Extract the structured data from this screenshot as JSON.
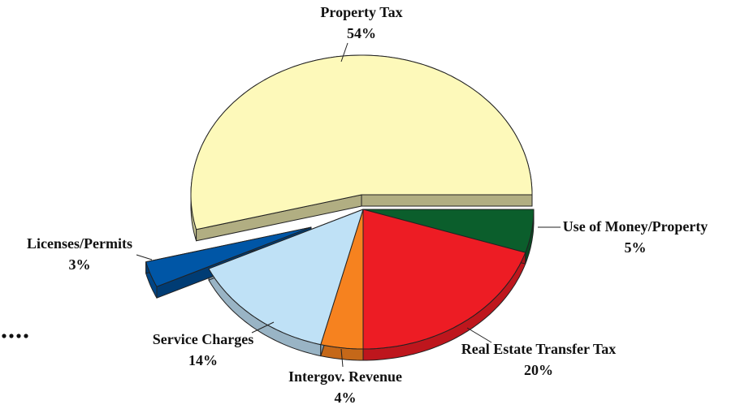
{
  "chart_data": {
    "type": "pie",
    "categories": [
      "Use of Money/Property",
      "Real Estate Transfer Tax",
      "Intergov. Revenue",
      "Service Charges",
      "Licenses/Permits",
      "Property Tax"
    ],
    "values": [
      5,
      20,
      4,
      14,
      3,
      54
    ],
    "value_labels": [
      "5%",
      "20%",
      "4%",
      "14%",
      "3%",
      "54%"
    ],
    "colors": [
      "#0b5e2c",
      "#ed1c24",
      "#f6821f",
      "#bfe1f6",
      "#0056a6",
      "#fdf9ba"
    ]
  }
}
